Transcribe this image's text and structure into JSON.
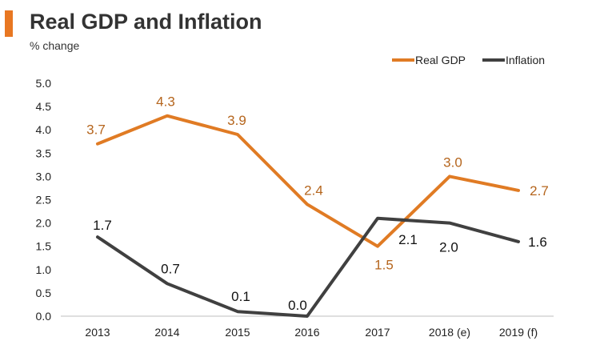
{
  "header": {
    "title": "Real GDP and Inflation",
    "subtitle": "% change"
  },
  "colors": {
    "accent_bar": "#E87722",
    "gdp": "#E07B24",
    "gdp_label": "#B5651D",
    "inflation": "#404040",
    "axis_text": "#222222"
  },
  "chart_data": {
    "type": "line",
    "categories": [
      "2013",
      "2014",
      "2015",
      "2016",
      "2017",
      "2018 (e)",
      "2019 (f)"
    ],
    "series": [
      {
        "name": "Real GDP",
        "values": [
          3.7,
          4.3,
          3.9,
          2.4,
          1.5,
          3.0,
          2.7
        ]
      },
      {
        "name": "Inflation",
        "values": [
          1.7,
          0.7,
          0.1,
          0.0,
          2.1,
          2.0,
          1.6
        ]
      }
    ],
    "y_ticks": [
      "0.0",
      "0.5",
      "1.0",
      "1.5",
      "2.0",
      "2.5",
      "3.0",
      "3.5",
      "4.0",
      "4.5",
      "5.0"
    ],
    "ylim": [
      0,
      5
    ],
    "grid": false,
    "legend": "top-right",
    "data_labels": {
      "Real GDP": [
        "3.7",
        "4.3",
        "3.9",
        "2.4",
        "1.5",
        "3.0",
        "2.7"
      ],
      "Inflation": [
        "1.7",
        "0.7",
        "0.1",
        "0.0",
        "2.1",
        "2.0",
        "1.6"
      ]
    }
  }
}
